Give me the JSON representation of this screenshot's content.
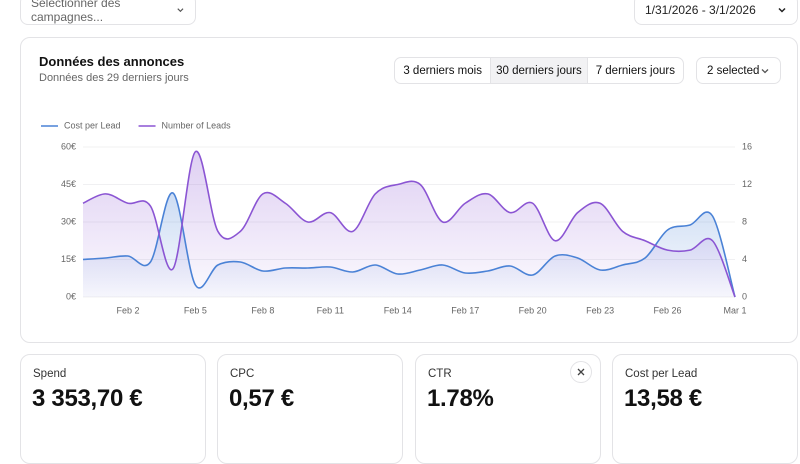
{
  "header": {
    "campaign_select": "Sélectionner des campagnes...",
    "date_range": "1/31/2026 - 3/1/2026"
  },
  "panel": {
    "title": "Données des annonces",
    "subtitle": "Données des 29 derniers jours",
    "tabs": [
      "3 derniers mois",
      "30 derniers jours",
      "7 derniers jours"
    ],
    "selector": "2 selected"
  },
  "chart_data": {
    "type": "line",
    "categories": [
      null,
      null,
      "Feb 2",
      null,
      null,
      "Feb 5",
      null,
      null,
      "Feb 8",
      null,
      null,
      "Feb 11",
      null,
      null,
      "Feb 14",
      null,
      null,
      "Feb 17",
      null,
      null,
      "Feb 20",
      null,
      null,
      "Feb 23",
      null,
      null,
      "Feb 26",
      null,
      null,
      "Mar 1"
    ],
    "series": [
      {
        "name": "Cost per Lead",
        "color": "#4a82d6",
        "axis": "y",
        "values": [
          15,
          15.6,
          16.4,
          14,
          41.6,
          4.8,
          12.8,
          14,
          10.4,
          11.6,
          11.6,
          12,
          10,
          12.8,
          9.2,
          10.8,
          12.8,
          9.6,
          10.4,
          12.4,
          8.8,
          16.4,
          15.6,
          10.8,
          12.8,
          15.6,
          26.8,
          28.8,
          32.4,
          0
        ]
      },
      {
        "name": "Number of Leads",
        "color": "#8b55d3",
        "axis": "y2",
        "values": [
          10,
          11,
          10,
          9.7,
          3,
          15.5,
          7,
          7,
          11,
          10,
          8,
          9,
          7,
          11,
          12,
          12,
          8,
          10,
          11,
          9,
          10,
          6,
          9,
          10,
          7,
          6,
          5,
          5,
          6,
          0
        ]
      }
    ],
    "ylim": [
      0,
      60
    ],
    "yticks": [
      {
        "value": 0,
        "label": "0€"
      },
      {
        "value": 15,
        "label": "15€"
      },
      {
        "value": 30,
        "label": "30€"
      },
      {
        "value": 45,
        "label": "45€"
      },
      {
        "value": 60,
        "label": "60€"
      }
    ],
    "y2lim": [
      0,
      16
    ],
    "y2ticks": [
      0,
      4,
      8,
      12,
      16
    ],
    "grid": true,
    "legend": "top-left"
  },
  "kpis": [
    {
      "label": "Spend",
      "value": "3 353,70 €"
    },
    {
      "label": "CPC",
      "value": "0,57 €"
    },
    {
      "label": "CTR",
      "value": "1.78%"
    },
    {
      "label": "Cost per Lead",
      "value": "13,58 €"
    }
  ]
}
